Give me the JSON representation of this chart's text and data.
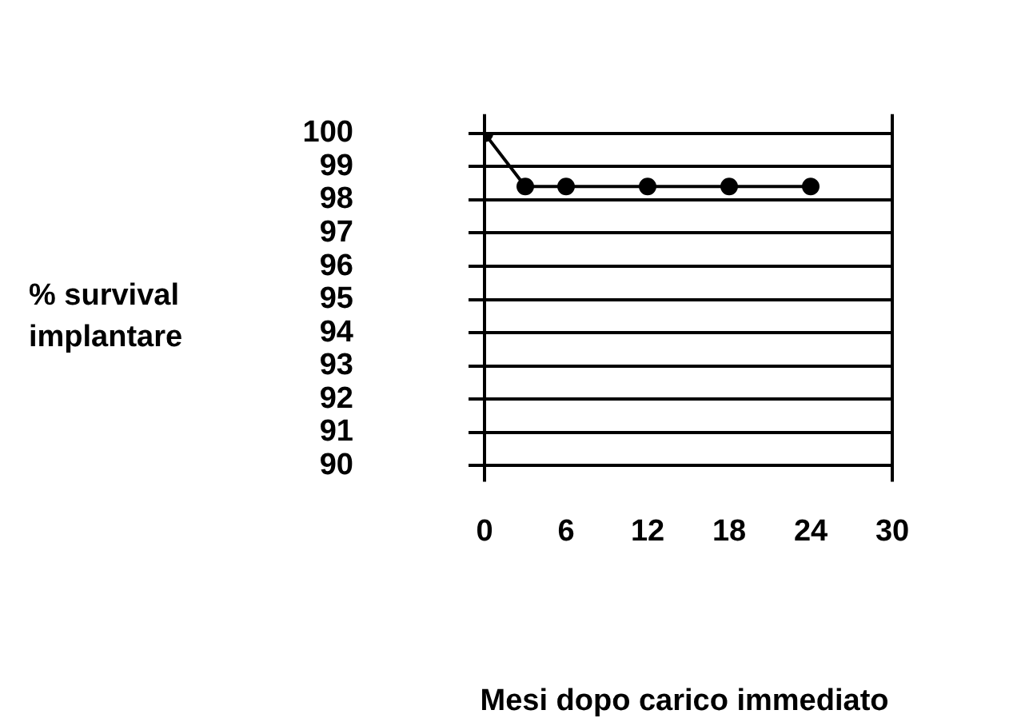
{
  "chart_data": {
    "type": "line",
    "xlabel": "Mesi dopo carico immediato",
    "ylabel": "% survival implantare",
    "x": [
      0,
      3,
      6,
      12,
      18,
      24
    ],
    "series": [
      {
        "color": "#000000",
        "values": [
          100,
          98.4,
          98.4,
          98.4,
          98.4,
          98.4
        ]
      }
    ],
    "xlim": [
      0,
      30
    ],
    "xticks": [
      0,
      6,
      12,
      18,
      24,
      30
    ],
    "ylim": [
      90,
      100
    ],
    "yticks": [
      90,
      91,
      92,
      93,
      94,
      95,
      96,
      97,
      98,
      99,
      100
    ],
    "grid": "y",
    "legend": false,
    "marker": "circle",
    "line_style": "solid"
  }
}
